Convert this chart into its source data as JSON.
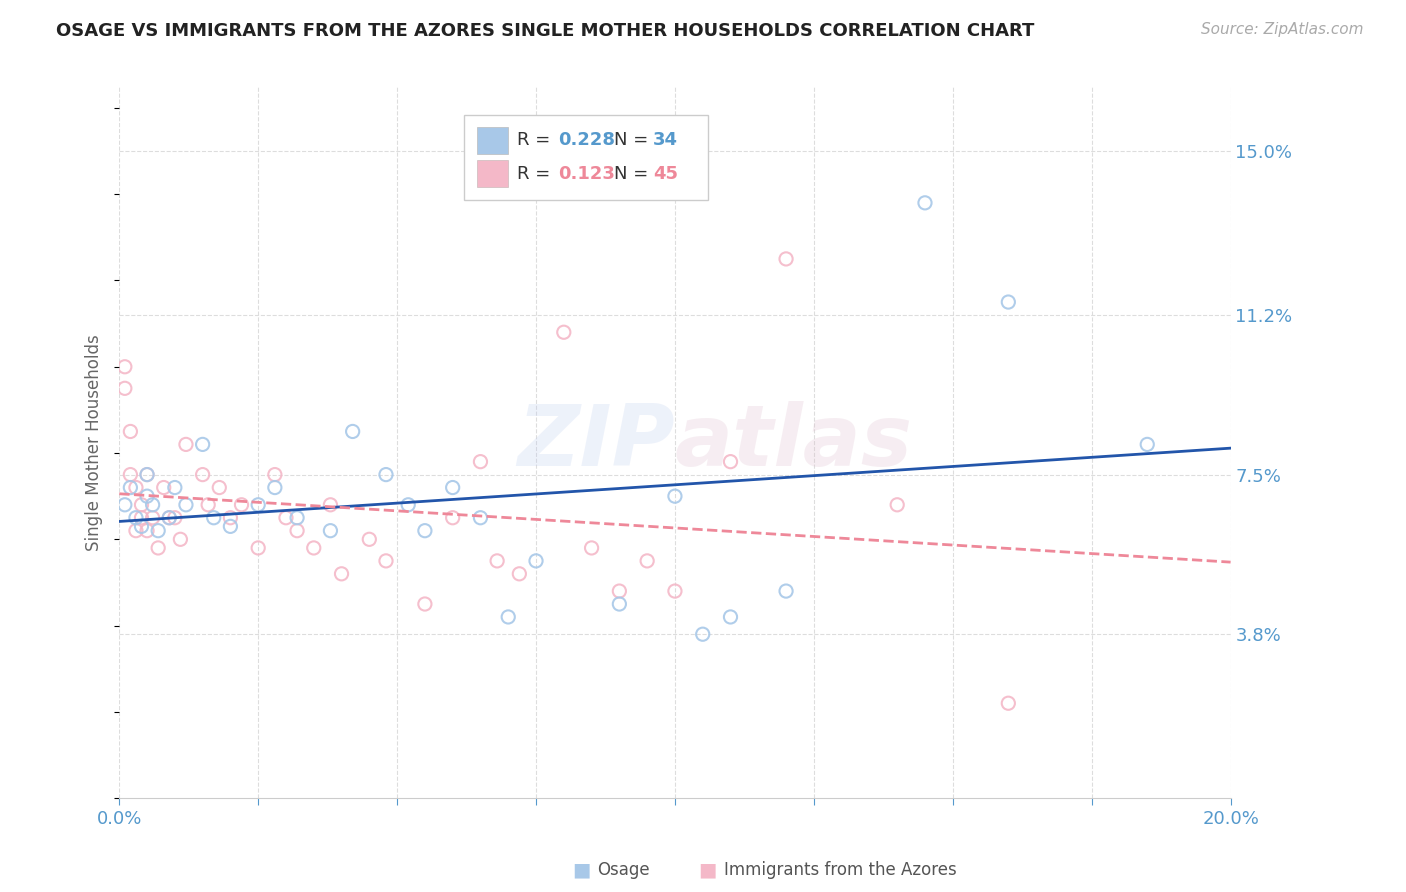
{
  "title": "OSAGE VS IMMIGRANTS FROM THE AZORES SINGLE MOTHER HOUSEHOLDS CORRELATION CHART",
  "source_text": "Source: ZipAtlas.com",
  "ylabel": "Single Mother Households",
  "xlim": [
    0.0,
    0.2
  ],
  "ylim": [
    0.0,
    0.165
  ],
  "ytick_right_labels": [
    "15.0%",
    "11.2%",
    "7.5%",
    "3.8%"
  ],
  "ytick_right_values": [
    0.15,
    0.112,
    0.075,
    0.038
  ],
  "watermark": "ZIPAtlas",
  "osage_color": "#a8c8e8",
  "azores_color": "#f4b8c8",
  "osage_line_color": "#2255aa",
  "azores_line_color": "#ee8899",
  "background_color": "#ffffff",
  "grid_color": "#dddddd",
  "title_color": "#222222",
  "right_axis_color": "#5599cc",
  "legend_text_color": "#333333",
  "legend_value_color": "#5599cc",
  "osage_x": [
    0.001,
    0.002,
    0.003,
    0.004,
    0.005,
    0.005,
    0.006,
    0.007,
    0.009,
    0.01,
    0.012,
    0.015,
    0.017,
    0.02,
    0.025,
    0.028,
    0.032,
    0.038,
    0.042,
    0.048,
    0.052,
    0.055,
    0.06,
    0.065,
    0.07,
    0.075,
    0.09,
    0.1,
    0.105,
    0.11,
    0.12,
    0.145,
    0.16,
    0.185
  ],
  "osage_y": [
    0.068,
    0.072,
    0.065,
    0.063,
    0.07,
    0.075,
    0.068,
    0.062,
    0.065,
    0.072,
    0.068,
    0.082,
    0.065,
    0.063,
    0.068,
    0.072,
    0.065,
    0.062,
    0.085,
    0.075,
    0.068,
    0.062,
    0.072,
    0.065,
    0.042,
    0.055,
    0.045,
    0.07,
    0.038,
    0.042,
    0.048,
    0.138,
    0.115,
    0.082
  ],
  "azores_x": [
    0.001,
    0.001,
    0.002,
    0.002,
    0.003,
    0.003,
    0.004,
    0.004,
    0.005,
    0.005,
    0.006,
    0.007,
    0.008,
    0.009,
    0.01,
    0.011,
    0.012,
    0.015,
    0.016,
    0.018,
    0.02,
    0.022,
    0.025,
    0.028,
    0.03,
    0.032,
    0.035,
    0.038,
    0.04,
    0.045,
    0.048,
    0.055,
    0.06,
    0.065,
    0.068,
    0.072,
    0.08,
    0.085,
    0.09,
    0.095,
    0.1,
    0.11,
    0.12,
    0.14,
    0.16
  ],
  "azores_y": [
    0.1,
    0.095,
    0.085,
    0.075,
    0.072,
    0.062,
    0.068,
    0.065,
    0.075,
    0.062,
    0.065,
    0.058,
    0.072,
    0.065,
    0.065,
    0.06,
    0.082,
    0.075,
    0.068,
    0.072,
    0.065,
    0.068,
    0.058,
    0.075,
    0.065,
    0.062,
    0.058,
    0.068,
    0.052,
    0.06,
    0.055,
    0.045,
    0.065,
    0.078,
    0.055,
    0.052,
    0.108,
    0.058,
    0.048,
    0.055,
    0.048,
    0.078,
    0.125,
    0.068,
    0.022
  ]
}
